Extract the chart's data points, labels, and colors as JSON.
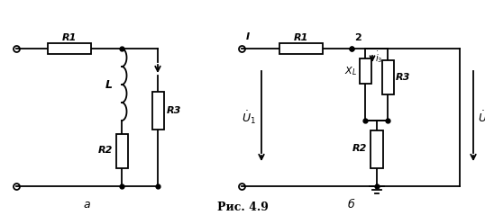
{
  "title": "Рис. 4.9",
  "background_color": "#ffffff",
  "line_color": "#000000",
  "label_a": "а",
  "label_b": "б",
  "figsize": [
    5.38,
    2.49
  ],
  "dpi": 100
}
